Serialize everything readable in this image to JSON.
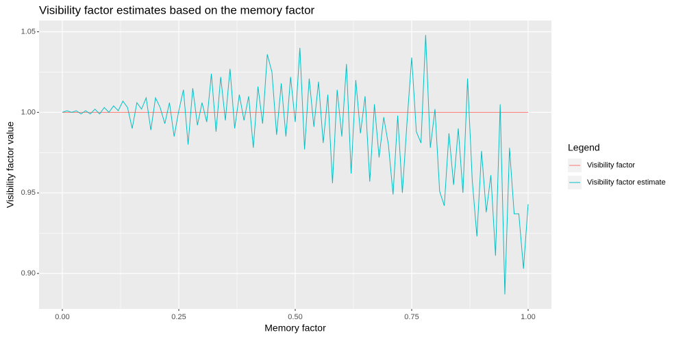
{
  "chart_data": {
    "type": "line",
    "title": "Visibility factor estimates based on the memory factor",
    "x_label": "Memory factor",
    "y_label": "Visibility factor value",
    "legend_title": "Legend",
    "legend_position": "right",
    "grid": true,
    "x": [
      0,
      0.01,
      0.02,
      0.03,
      0.04,
      0.05,
      0.06,
      0.07,
      0.08,
      0.09,
      0.1,
      0.11,
      0.12,
      0.13,
      0.14,
      0.15,
      0.16,
      0.17,
      0.18,
      0.19,
      0.2,
      0.21,
      0.22,
      0.23,
      0.24,
      0.25,
      0.26,
      0.27,
      0.28,
      0.29,
      0.3,
      0.31,
      0.32,
      0.33,
      0.34,
      0.35,
      0.36,
      0.37,
      0.38,
      0.39,
      0.4,
      0.41,
      0.42,
      0.43,
      0.44,
      0.45,
      0.46,
      0.47,
      0.48,
      0.49,
      0.5,
      0.51,
      0.52,
      0.53,
      0.54,
      0.55,
      0.56,
      0.57,
      0.58,
      0.59,
      0.6,
      0.61,
      0.62,
      0.63,
      0.64,
      0.65,
      0.66,
      0.67,
      0.68,
      0.69,
      0.7,
      0.71,
      0.72,
      0.73,
      0.74,
      0.75,
      0.76,
      0.77,
      0.78,
      0.79,
      0.8,
      0.81,
      0.82,
      0.83,
      0.84,
      0.85,
      0.86,
      0.87,
      0.88,
      0.89,
      0.9,
      0.91,
      0.92,
      0.93,
      0.94,
      0.95,
      0.96,
      0.97,
      0.98,
      0.99,
      1
    ],
    "series": [
      {
        "name": "Visibility factor",
        "color": "#F8766D",
        "values": [
          1,
          1,
          1,
          1,
          1,
          1,
          1,
          1,
          1,
          1,
          1,
          1,
          1,
          1,
          1,
          1,
          1,
          1,
          1,
          1,
          1,
          1,
          1,
          1,
          1,
          1,
          1,
          1,
          1,
          1,
          1,
          1,
          1,
          1,
          1,
          1,
          1,
          1,
          1,
          1,
          1,
          1,
          1,
          1,
          1,
          1,
          1,
          1,
          1,
          1,
          1,
          1,
          1,
          1,
          1,
          1,
          1,
          1,
          1,
          1,
          1,
          1,
          1,
          1,
          1,
          1,
          1,
          1,
          1,
          1,
          1,
          1,
          1,
          1,
          1,
          1,
          1,
          1,
          1,
          1,
          1,
          1,
          1,
          1,
          1,
          1,
          1,
          1,
          1,
          1,
          1,
          1,
          1,
          1,
          1,
          1,
          1,
          1,
          1,
          1,
          1
        ]
      },
      {
        "name": "Visibility factor estimate",
        "color": "#00BFC4",
        "values": [
          1.0,
          1.001,
          1.0,
          1.001,
          0.999,
          1.001,
          0.999,
          1.002,
          0.999,
          1.003,
          1.0,
          1.004,
          1.001,
          1.007,
          1.003,
          0.99,
          1.006,
          1.002,
          1.009,
          0.989,
          1.009,
          1.003,
          0.993,
          1.006,
          0.985,
          1.001,
          1.014,
          0.98,
          1.015,
          0.992,
          1.006,
          0.994,
          1.024,
          0.988,
          1.022,
          0.995,
          1.027,
          0.99,
          1.011,
          0.995,
          1.01,
          0.978,
          1.016,
          0.993,
          1.036,
          1.025,
          0.986,
          1.018,
          0.985,
          1.022,
          0.994,
          1.04,
          0.977,
          1.021,
          0.991,
          1.019,
          0.981,
          1.011,
          0.956,
          1.014,
          0.985,
          1.03,
          0.962,
          1.02,
          0.987,
          1.01,
          0.957,
          1.005,
          0.972,
          0.997,
          0.98,
          0.949,
          0.998,
          0.95,
          0.994,
          1.034,
          0.988,
          0.981,
          1.048,
          0.978,
          1.002,
          0.951,
          0.942,
          0.987,
          0.955,
          0.99,
          0.95,
          1.021,
          0.958,
          0.923,
          0.976,
          0.938,
          0.961,
          0.911,
          1.005,
          0.887,
          0.978,
          0.937,
          0.937,
          0.903,
          0.943
        ]
      }
    ],
    "xlim": [
      -0.05,
      1.05
    ],
    "ylim": [
      0.878,
      1.057
    ],
    "xticks": [
      {
        "value": 0,
        "label": "0.00"
      },
      {
        "value": 0.25,
        "label": "0.25"
      },
      {
        "value": 0.5,
        "label": "0.50"
      },
      {
        "value": 0.75,
        "label": "0.75"
      },
      {
        "value": 1,
        "label": "1.00"
      }
    ],
    "yticks": [
      {
        "value": 0.9,
        "label": "0.90"
      },
      {
        "value": 0.95,
        "label": "0.95"
      },
      {
        "value": 1,
        "label": "1.00"
      },
      {
        "value": 1.05,
        "label": "1.05"
      }
    ]
  }
}
